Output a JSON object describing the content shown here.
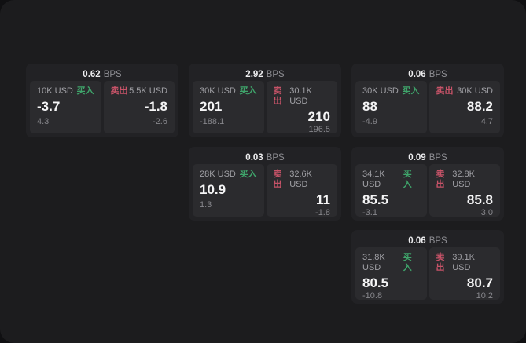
{
  "labels": {
    "bps_unit": "BPS",
    "buy": "买入",
    "sell": "卖出"
  },
  "colors": {
    "buy_accent": "#3fa56b",
    "sell_accent": "#c75368",
    "screen_bg": "#1c1c1e",
    "card_bg": "#222225",
    "panel_bg": "#2b2b2e"
  },
  "cards": [
    {
      "bps": "0.62",
      "grid": {
        "row": 1,
        "col": 1
      },
      "buy": {
        "amount": "10K USD",
        "price": "-3.7",
        "delta": "4.3"
      },
      "sell": {
        "amount": "5.5K USD",
        "price": "-1.8",
        "delta": "-2.6"
      }
    },
    {
      "bps": "2.92",
      "grid": {
        "row": 1,
        "col": 2
      },
      "buy": {
        "amount": "30K USD",
        "price": "201",
        "delta": "-188.1"
      },
      "sell": {
        "amount": "30.1K USD",
        "price": "210",
        "delta": "196.5"
      }
    },
    {
      "bps": "0.06",
      "grid": {
        "row": 1,
        "col": 3
      },
      "buy": {
        "amount": "30K USD",
        "price": "88",
        "delta": "-4.9"
      },
      "sell": {
        "amount": "30K USD",
        "price": "88.2",
        "delta": "4.7"
      }
    },
    {
      "bps": "0.03",
      "grid": {
        "row": 2,
        "col": 2
      },
      "buy": {
        "amount": "28K USD",
        "price": "10.9",
        "delta": "1.3"
      },
      "sell": {
        "amount": "32.6K USD",
        "price": "11",
        "delta": "-1.8"
      }
    },
    {
      "bps": "0.09",
      "grid": {
        "row": 2,
        "col": 3
      },
      "buy": {
        "amount": "34.1K USD",
        "price": "85.5",
        "delta": "-3.1"
      },
      "sell": {
        "amount": "32.8K USD",
        "price": "85.8",
        "delta": "3.0"
      }
    },
    {
      "bps": "0.06",
      "grid": {
        "row": 3,
        "col": 3
      },
      "buy": {
        "amount": "31.8K USD",
        "price": "80.5",
        "delta": "-10.8"
      },
      "sell": {
        "amount": "39.1K USD",
        "price": "80.7",
        "delta": "10.2"
      }
    }
  ]
}
